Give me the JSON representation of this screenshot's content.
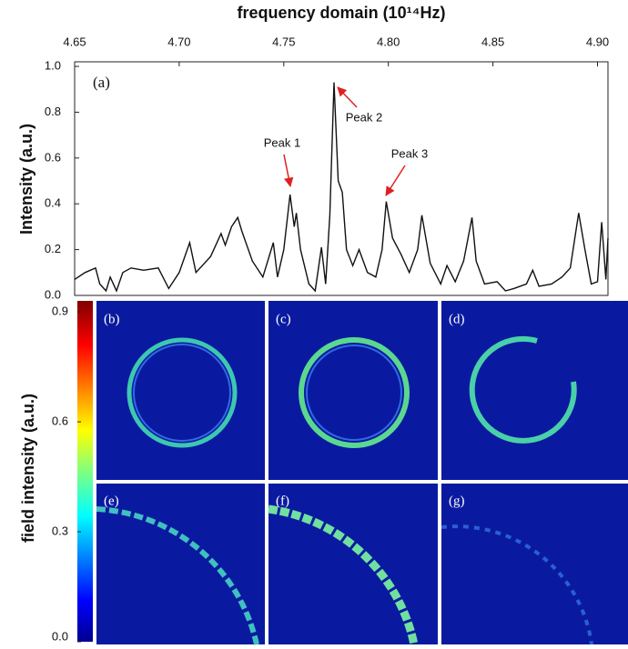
{
  "chart_data": {
    "type": "line",
    "title": "frequency domain (10¹⁴Hz)",
    "ylabel": "Intensity (a.u.)",
    "color": "#111111",
    "x": [
      4.65,
      4.655,
      4.66,
      4.662,
      4.665,
      4.667,
      4.67,
      4.673,
      4.677,
      4.683,
      4.69,
      4.695,
      4.7,
      4.705,
      4.708,
      4.715,
      4.72,
      4.722,
      4.725,
      4.728,
      4.73,
      4.735,
      4.74,
      4.745,
      4.747,
      4.75,
      4.753,
      4.755,
      4.756,
      4.758,
      4.762,
      4.765,
      4.768,
      4.77,
      4.772,
      4.774,
      4.776,
      4.778,
      4.78,
      4.783,
      4.786,
      4.79,
      4.794,
      4.797,
      4.799,
      4.802,
      4.806,
      4.81,
      4.814,
      4.816,
      4.82,
      4.825,
      4.828,
      4.832,
      4.836,
      4.84,
      4.842,
      4.846,
      4.852,
      4.856,
      4.86,
      4.866,
      4.869,
      4.872,
      4.878,
      4.883,
      4.887,
      4.891,
      4.894,
      4.897,
      4.9,
      4.902,
      4.904,
      4.905
    ],
    "values": [
      0.07,
      0.1,
      0.12,
      0.05,
      0.02,
      0.08,
      0.02,
      0.1,
      0.12,
      0.11,
      0.12,
      0.03,
      0.1,
      0.23,
      0.1,
      0.17,
      0.27,
      0.22,
      0.3,
      0.34,
      0.28,
      0.15,
      0.08,
      0.23,
      0.08,
      0.2,
      0.44,
      0.3,
      0.36,
      0.2,
      0.05,
      0.02,
      0.21,
      0.05,
      0.35,
      0.93,
      0.5,
      0.45,
      0.2,
      0.13,
      0.2,
      0.1,
      0.08,
      0.2,
      0.41,
      0.25,
      0.18,
      0.1,
      0.2,
      0.35,
      0.14,
      0.05,
      0.13,
      0.06,
      0.15,
      0.34,
      0.15,
      0.05,
      0.06,
      0.02,
      0.03,
      0.05,
      0.11,
      0.04,
      0.05,
      0.08,
      0.12,
      0.36,
      0.2,
      0.05,
      0.06,
      0.32,
      0.07,
      0.25
    ],
    "xlim": [
      4.65,
      4.905
    ],
    "xticks": [
      4.65,
      {
        "value": 4.7,
        "label": "4.70"
      },
      4.75,
      {
        "value": 4.8,
        "label": "4.80"
      },
      4.85,
      {
        "value": 4.9,
        "label": "4.90"
      }
    ],
    "ylim": [
      0,
      1.02
    ],
    "yticks": [
      {
        "value": 0,
        "label": "0.0"
      },
      0.2,
      0.4,
      0.6,
      0.8,
      {
        "value": 1,
        "label": "1.0"
      }
    ],
    "annotations": [
      "(a)",
      "Peak 1",
      "Peak 2",
      "Peak 3"
    ],
    "panel_labels": [
      "(b)",
      "(c)",
      "(d)",
      "(e)",
      "(f)",
      "(g)"
    ],
    "colorbar": {
      "label": "field intensity (a.u.)",
      "lim": [
        0,
        0.93
      ],
      "ticks": [
        {
          "value": 0,
          "label": "0.0"
        },
        0.3,
        0.6,
        0.9
      ]
    }
  }
}
